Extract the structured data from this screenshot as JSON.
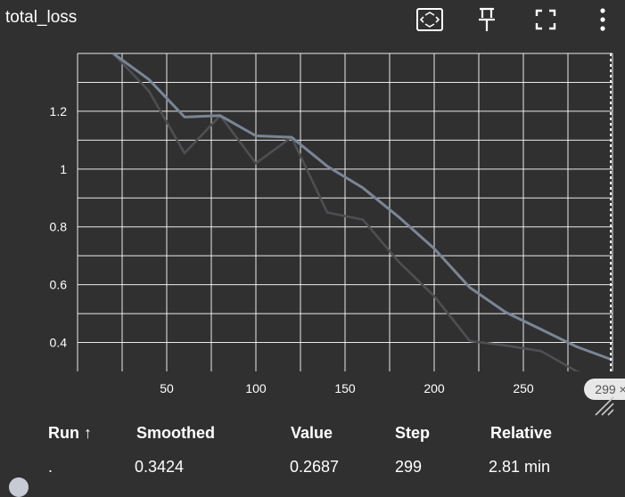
{
  "card": {
    "title": "total_loss"
  },
  "toolbar": {
    "fit_domain_icon": "fit-to-data-icon",
    "pin_icon": "pin-icon",
    "fullscreen_icon": "fullscreen-icon",
    "more_icon": "more-vert-icon"
  },
  "colors": {
    "background": "#303030",
    "grid": "#ffffff",
    "smoothed_line": "#7a8696",
    "raw_line": "#4d4f52",
    "cursor_line": "#ffffff",
    "step_badge_bg": "#e8e8e8",
    "step_badge_text": "#555555"
  },
  "chart_data": {
    "type": "line",
    "x_ticks": [
      "50",
      "100",
      "150",
      "200",
      "250"
    ],
    "y_ticks": [
      "0.4",
      "0.6",
      "0.8",
      "1",
      "1.2"
    ],
    "xlim": [
      0,
      300
    ],
    "ylim": [
      0.3,
      1.4
    ],
    "grid": true,
    "series": [
      {
        "role": "smoothed",
        "x": [
          20,
          40,
          60,
          80,
          100,
          120,
          140,
          160,
          180,
          200,
          220,
          240,
          260,
          280,
          299
        ],
        "y": [
          1.4,
          1.31,
          1.18,
          1.185,
          1.115,
          1.11,
          1.01,
          0.935,
          0.835,
          0.725,
          0.59,
          0.505,
          0.445,
          0.385,
          0.342
        ]
      },
      {
        "role": "raw",
        "x": [
          20,
          40,
          60,
          80,
          100,
          120,
          140,
          160,
          180,
          200,
          220,
          240,
          260,
          280,
          299
        ],
        "y": [
          1.4,
          1.27,
          1.055,
          1.185,
          1.02,
          1.11,
          0.85,
          0.825,
          0.68,
          0.56,
          0.405,
          0.39,
          0.37,
          0.3,
          0.269
        ]
      }
    ],
    "cursor": {
      "step": 299,
      "badge_label": "299 ×"
    }
  },
  "table": {
    "headers": {
      "run": "Run ↑",
      "smoothed": "Smoothed",
      "value": "Value",
      "step": "Step",
      "relative": "Relative"
    },
    "rows": [
      {
        "run": ".",
        "smoothed": "0.3424",
        "value": "0.2687",
        "step": "299",
        "relative": "2.81 min"
      }
    ]
  }
}
